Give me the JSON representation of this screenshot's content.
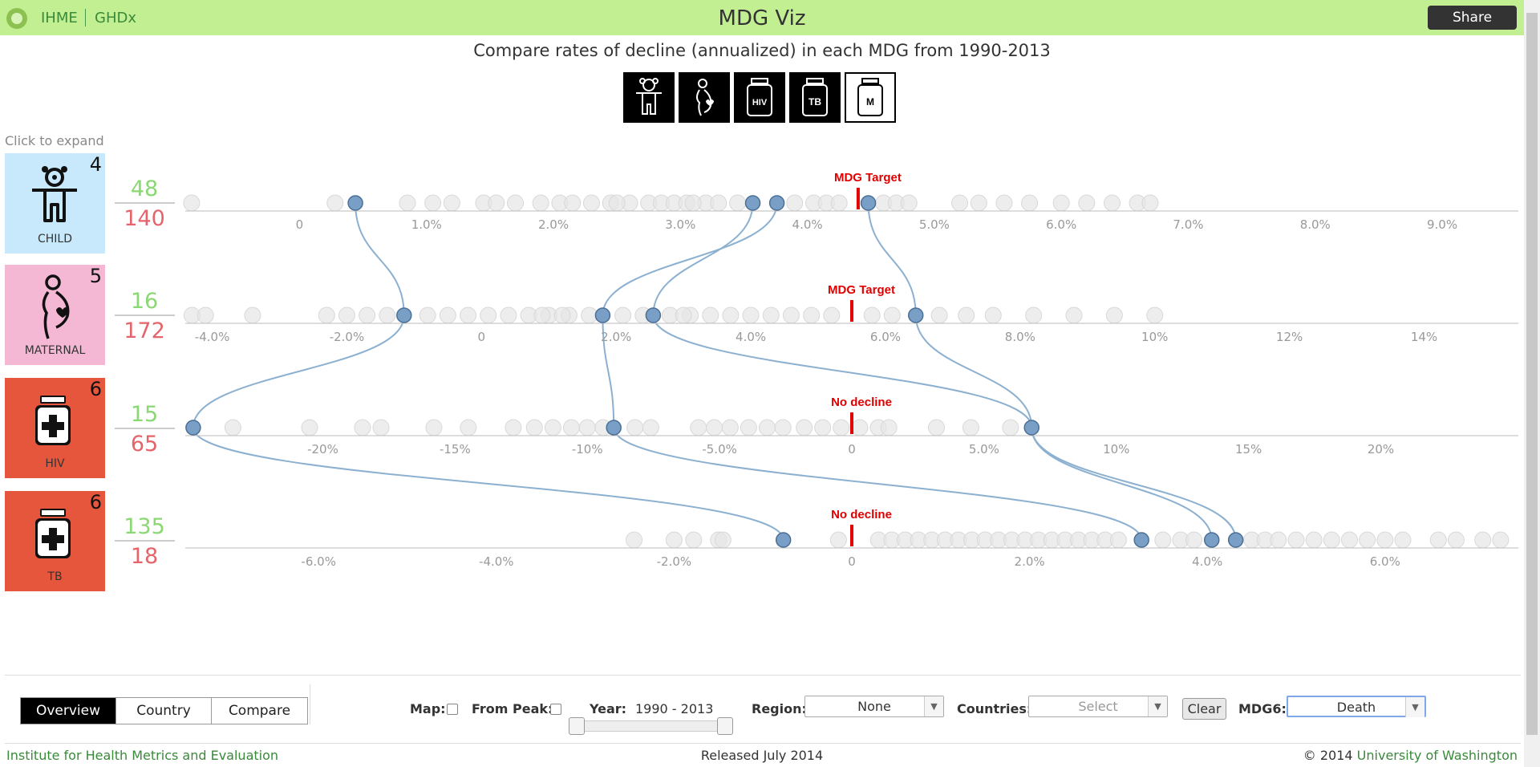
{
  "header": {
    "brand_ihme": "IHME",
    "brand_ghdx": "GHDx",
    "title": "MDG Viz",
    "share_label": "Share"
  },
  "subtitle": "Compare rates of decline (annualized) in each MDG from 1990-2013",
  "goal_buttons": [
    {
      "name": "child",
      "icon": "child-icon",
      "active": false
    },
    {
      "name": "maternal",
      "icon": "maternal-icon",
      "active": false
    },
    {
      "name": "hiv",
      "icon": "hiv-bottle-icon",
      "text": "HIV",
      "active": false
    },
    {
      "name": "tb",
      "icon": "tb-bottle-icon",
      "text": "TB",
      "active": false
    },
    {
      "name": "malaria",
      "icon": "malaria-bottle-icon",
      "text": "M",
      "active": true
    }
  ],
  "click_to_expand": "Click to expand",
  "rows": [
    {
      "key": "child",
      "label": "CHILD",
      "count": "4",
      "tile_color": "#c8e8fb",
      "green": "48",
      "red": "140",
      "marker_label": "MDG Target",
      "marker_value": 4.4,
      "domain": [
        -0.9,
        9.6
      ],
      "ticks": [
        {
          "v": 0,
          "t": "0"
        },
        {
          "v": 1,
          "t": "1.0%"
        },
        {
          "v": 2,
          "t": "2.0%"
        },
        {
          "v": 3,
          "t": "3.0%"
        },
        {
          "v": 4,
          "t": "4.0%"
        },
        {
          "v": 5,
          "t": "5.0%"
        },
        {
          "v": 6,
          "t": "6.0%"
        },
        {
          "v": 7,
          "t": "7.0%"
        },
        {
          "v": 8,
          "t": "8.0%"
        },
        {
          "v": 9,
          "t": "9.0%"
        }
      ],
      "highlighted": [
        0.44,
        3.57,
        3.76,
        4.48
      ],
      "background": [
        -0.85,
        0.85,
        1.05,
        1.2,
        1.45,
        1.55,
        1.7,
        1.9,
        2.05,
        2.15,
        2.3,
        2.45,
        2.6,
        2.75,
        2.85,
        2.95,
        3.05,
        3.2,
        3.3,
        3.45,
        3.9,
        4.05,
        4.15,
        4.25,
        4.6,
        4.7,
        4.8,
        5.2,
        5.35,
        5.55,
        5.75,
        6.0,
        6.2,
        6.4,
        6.6,
        6.7,
        0.28,
        2.5,
        3.1
      ]
    },
    {
      "key": "maternal",
      "label": "MATERNAL",
      "count": "5",
      "tile_color": "#f4b8d4",
      "green": "16",
      "red": "172",
      "marker_label": "MDG Target",
      "marker_value": 5.5,
      "domain": [
        -4.4,
        15.4
      ],
      "ticks": [
        {
          "v": -4,
          "t": "-4.0%"
        },
        {
          "v": -2,
          "t": "-2.0%"
        },
        {
          "v": 0,
          "t": "0"
        },
        {
          "v": 2,
          "t": "2.0%"
        },
        {
          "v": 4,
          "t": "4.0%"
        },
        {
          "v": 6,
          "t": "6.0%"
        },
        {
          "v": 8,
          "t": "8.0%"
        },
        {
          "v": 10,
          "t": "10%"
        },
        {
          "v": 12,
          "t": "12%"
        },
        {
          "v": 14,
          "t": "14%"
        }
      ],
      "highlighted": [
        -1.15,
        1.8,
        2.55,
        6.45
      ],
      "background": [
        -4.3,
        -4.1,
        -3.4,
        -2.3,
        -2.0,
        -1.7,
        -1.4,
        -0.8,
        -0.5,
        -0.2,
        0.1,
        0.4,
        0.7,
        1.0,
        1.3,
        1.6,
        2.1,
        2.4,
        2.8,
        3.1,
        3.4,
        3.7,
        4.0,
        4.3,
        4.6,
        4.9,
        5.2,
        5.8,
        6.1,
        6.8,
        7.2,
        7.6,
        8.2,
        8.8,
        9.4,
        10.0,
        0.9,
        1.2,
        3.0
      ]
    },
    {
      "key": "hiv",
      "label": "HIV",
      "count": "6",
      "tile_color": "#e5563d",
      "green": "15",
      "red": "65",
      "marker_label": "No decline",
      "marker_value": 0,
      "domain": [
        -25.2,
        25.2
      ],
      "ticks": [
        {
          "v": -20,
          "t": "-20%"
        },
        {
          "v": -15,
          "t": "-15%"
        },
        {
          "v": -10,
          "t": "-10%"
        },
        {
          "v": -5,
          "t": "-5.0%"
        },
        {
          "v": 0,
          "t": "0"
        },
        {
          "v": 5,
          "t": "5.0%"
        },
        {
          "v": 10,
          "t": "10%"
        },
        {
          "v": 15,
          "t": "15%"
        },
        {
          "v": 20,
          "t": "20%"
        }
      ],
      "highlighted": [
        -24.9,
        -9.0,
        6.8
      ],
      "background": [
        -23.4,
        -20.5,
        -18.5,
        -17.8,
        -15.8,
        -14.5,
        -12.8,
        -12.0,
        -11.3,
        -10.6,
        -10.0,
        -9.4,
        -8.2,
        -7.6,
        -5.8,
        -5.2,
        -4.6,
        -3.9,
        -3.2,
        -2.6,
        -1.8,
        -1.1,
        -0.4,
        0.3,
        1.0,
        1.4,
        3.2,
        4.5,
        6.0
      ]
    },
    {
      "key": "tb",
      "label": "TB",
      "count": "6",
      "tile_color": "#e5563d",
      "green": "135",
      "red": "18",
      "marker_label": "No decline",
      "marker_value": 0,
      "domain": [
        -7.5,
        7.5
      ],
      "ticks": [
        {
          "v": -6,
          "t": "-6.0%"
        },
        {
          "v": -4,
          "t": "-4.0%"
        },
        {
          "v": -2,
          "t": "-2.0%"
        },
        {
          "v": 0,
          "t": "0"
        },
        {
          "v": 2,
          "t": "2.0%"
        },
        {
          "v": 4,
          "t": "4.0%"
        },
        {
          "v": 6,
          "t": "6.0%"
        }
      ],
      "highlighted": [
        -0.77,
        3.26,
        4.05,
        4.32
      ],
      "background": [
        -2.45,
        -2.0,
        -1.78,
        -1.5,
        -1.45,
        -0.15,
        0.3,
        0.45,
        0.6,
        0.75,
        0.9,
        1.05,
        1.2,
        1.35,
        1.5,
        1.65,
        1.8,
        1.95,
        2.1,
        2.25,
        2.4,
        2.55,
        2.7,
        2.85,
        3.0,
        3.5,
        3.7,
        3.85,
        4.5,
        4.65,
        4.8,
        5.0,
        5.2,
        5.4,
        5.6,
        5.8,
        6.0,
        6.2,
        6.6,
        6.8,
        7.1,
        7.3
      ]
    }
  ],
  "tabs": [
    {
      "label": "Overview",
      "active": true
    },
    {
      "label": "Country",
      "active": false
    },
    {
      "label": "Compare",
      "active": false
    }
  ],
  "controls": {
    "map_label": "Map:",
    "from_peak_label": "From Peak:",
    "year_label": "Year:",
    "year_value": "1990 - 2013",
    "region_label": "Region:",
    "region_value": "None",
    "countries_label": "Countries:",
    "countries_placeholder": "Select",
    "clear_label": "Clear",
    "mdg6_label": "MDG6:",
    "mdg6_value": "Death"
  },
  "footer": {
    "left": "Institute for Health Metrics and Evaluation",
    "center": "Released July 2014",
    "right_prefix": "© 2014",
    "right_link": "University of Washington"
  },
  "colors": {
    "header_bg": "#c2ef92",
    "highlight_dot": "#7a9fc6",
    "link_line": "#8cb0d0",
    "marker": "#e00000"
  }
}
